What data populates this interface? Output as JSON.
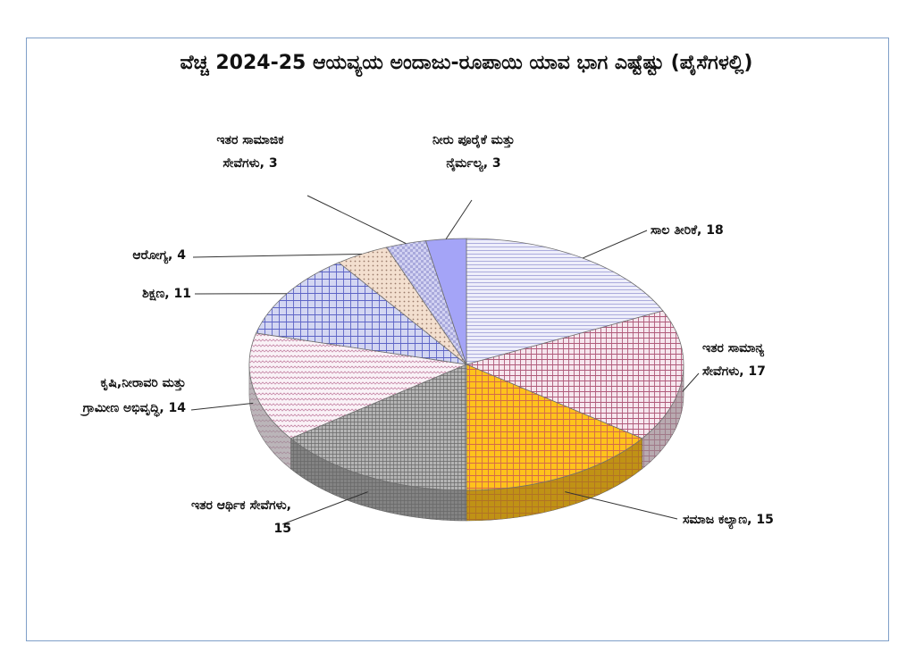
{
  "chart_data": {
    "type": "pie",
    "title": "ವೆಚ್ಚ 2024-25 ಆಯವ್ಯಯ ಅಂದಾಜು-ರೂಪಾಯಿ ಯಾವ ಭಾಗ ಎಷ್ಟೆಷ್ಟು (ಪೈಸೆಗಳಲ್ಲಿ)",
    "unit": "ಪೈಸೆಗಳಲ್ಲಿ",
    "three_d": true,
    "slices": [
      {
        "name": "ಸಾಲ ತೀರಿಕೆ",
        "value": 18,
        "label_lines": [
          "ಸಾಲ ತೀರಿಕೆ, 18"
        ],
        "color": "#e6e6f7",
        "pattern": "hlines"
      },
      {
        "name": "ಇತರ ಸಾಮಾನ್ಯ ಸೇವೆಗಳು",
        "value": 17,
        "label_lines": [
          "ಇತರ ಸಾಮಾನ್ಯ",
          "ಸೇವೆಗಳು, 17"
        ],
        "color": "#f3dde7",
        "pattern": "grid-red"
      },
      {
        "name": "ಸಮಾಜ ಕಲ್ಯಾಣ",
        "value": 15,
        "label_lines": [
          "ಸಮಾಜ ಕಲ್ಯಾಣ, 15"
        ],
        "color": "#ffc21c",
        "pattern": "grid-orange"
      },
      {
        "name": "ಇತರ ಆರ್ಥಿಕ ಸೇವೆಗಳು",
        "value": 15,
        "label_lines": [
          "ಇತರ ಆರ್ಥಿಕ ಸೇವೆಗಳು,",
          "15"
        ],
        "color": "#a7a7a7",
        "pattern": "grid-gray"
      },
      {
        "name": "ಕೃಷಿ,ನೀರಾವರಿ ಮತ್ತು ಗ್ರಾಮೀಣ ಅಭಿವೃದ್ಧಿ",
        "value": 14,
        "label_lines": [
          "ಕೃಷಿ,ನೀರಾವರಿ ಮತ್ತು",
          "ಗ್ರಾಮೀಣ ಅಭಿವೃದ್ಧಿ, 14"
        ],
        "color": "#f7eef5",
        "pattern": "zigzag"
      },
      {
        "name": "ಶಿಕ್ಷಣ",
        "value": 11,
        "label_lines": [
          "ಶಿಕ್ಷಣ, 11"
        ],
        "color": "#c7cbef",
        "pattern": "grid-blue"
      },
      {
        "name": "ಆರೋಗ್ಯ",
        "value": 4,
        "label_lines": [
          "ಆರೋಗ್ಯ, 4"
        ],
        "color": "#f1dac8",
        "pattern": "dots"
      },
      {
        "name": "ಇತರ ಸಾಮಾಜಿಕ ಸೇವೆಗಳು",
        "value": 3,
        "label_lines": [
          "ಇತರ ಸಾಮಾಜಿಕ",
          "ಸೇವೆಗಳು, 3"
        ],
        "color": "#c8c8ef",
        "pattern": "checker"
      },
      {
        "name": "ನೀರು ಪೂರೈಕೆ ಮತ್ತು ನೈರ್ಮಲ್ಯ",
        "value": 3,
        "label_lines": [
          "ನೀರು ಪೂರೈಕೆ ಮತ್ತು",
          "ನೈರ್ಮಲ್ಯ, 3"
        ],
        "color": "#a4a4f7",
        "pattern": "solid"
      }
    ]
  }
}
